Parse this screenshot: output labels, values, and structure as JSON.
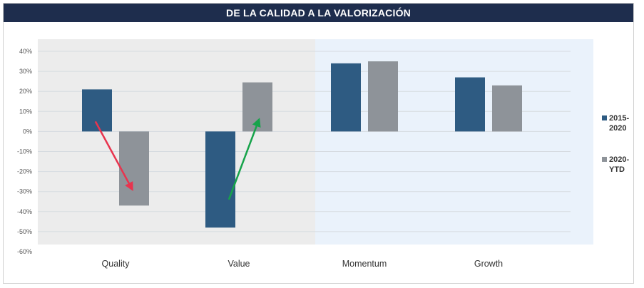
{
  "chart_data": {
    "type": "bar",
    "title": "DE LA CALIDAD A LA VALORIZACIÓN",
    "xlabel": "",
    "ylabel": "",
    "categories": [
      "Quality",
      "Value",
      "Momentum",
      "Growth"
    ],
    "series": [
      {
        "name": "2015-2020",
        "legend_lines": [
          "2015-",
          "2020"
        ],
        "color": "#2e5b82",
        "values": [
          0.21,
          -0.48,
          0.34,
          0.27
        ]
      },
      {
        "name": "2020-YTD",
        "legend_lines": [
          "2020-",
          "YTD"
        ],
        "color": "#8e9399",
        "values": [
          -0.37,
          0.245,
          0.35,
          0.23
        ]
      }
    ],
    "ylim": [
      -0.6,
      0.4
    ],
    "yticks": [
      0.4,
      0.3,
      0.2,
      0.1,
      0,
      -0.1,
      -0.2,
      -0.3,
      -0.4,
      -0.5,
      -0.6
    ],
    "ytick_labels": [
      "40%",
      "30%",
      "20%",
      "10%",
      "0%",
      "-10%",
      "-20%",
      "-30%",
      "-40%",
      "-50%",
      "-60%"
    ],
    "grid": true,
    "legend_position": "right",
    "background_regions": [
      {
        "categories": [
          "Quality",
          "Value"
        ],
        "color": "#ececec"
      },
      {
        "categories": [
          "Momentum",
          "Growth"
        ],
        "color": "#eaf2fb"
      }
    ],
    "annotations": [
      {
        "type": "arrow",
        "color": "#e8344e",
        "from": {
          "category": "Quality",
          "offset": -0.6,
          "y": 0.05
        },
        "to": {
          "category": "Quality",
          "offset": 0.5,
          "y": -0.29
        }
      },
      {
        "type": "arrow",
        "color": "#16a34a",
        "from": {
          "category": "Value",
          "offset": -0.3,
          "y": -0.34
        },
        "to": {
          "category": "Value",
          "offset": 0.6,
          "y": 0.06
        }
      }
    ]
  }
}
